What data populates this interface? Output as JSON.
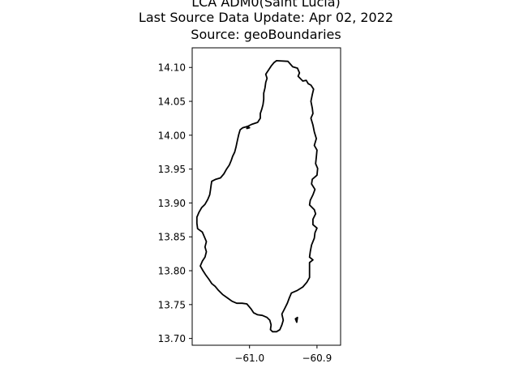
{
  "chart_data": {
    "type": "map",
    "title_lines": [
      "LCA ADM0(Saint Lucia)",
      "Last Source Data Update: Apr 02, 2022",
      "Source: geoBoundaries"
    ],
    "xlabel": "",
    "ylabel": "",
    "xlim": [
      -61.085,
      -60.865
    ],
    "ylim": [
      13.69,
      14.129
    ],
    "x_ticks": [
      {
        "value": -61.0,
        "label": "−61.0"
      },
      {
        "value": -60.9,
        "label": "−60.9"
      }
    ],
    "y_ticks": [
      {
        "value": 13.7,
        "label": "13.70"
      },
      {
        "value": 13.75,
        "label": "13.75"
      },
      {
        "value": 13.8,
        "label": "13.80"
      },
      {
        "value": 13.85,
        "label": "13.85"
      },
      {
        "value": 13.9,
        "label": "13.90"
      },
      {
        "value": 13.95,
        "label": "13.95"
      },
      {
        "value": 14.0,
        "label": "14.00"
      },
      {
        "value": 14.05,
        "label": "14.05"
      },
      {
        "value": 14.1,
        "label": "14.10"
      }
    ],
    "grid": false,
    "boundary_color": "#000000",
    "outline": [
      [
        -60.96,
        14.11
      ],
      [
        -60.943,
        14.109
      ],
      [
        -60.936,
        14.101
      ],
      [
        -60.929,
        14.099
      ],
      [
        -60.926,
        14.092
      ],
      [
        -60.928,
        14.087
      ],
      [
        -60.921,
        14.08
      ],
      [
        -60.916,
        14.081
      ],
      [
        -60.913,
        14.076
      ],
      [
        -60.909,
        14.074
      ],
      [
        -60.905,
        14.068
      ],
      [
        -60.907,
        14.06
      ],
      [
        -60.909,
        14.05
      ],
      [
        -60.907,
        14.04
      ],
      [
        -60.906,
        14.032
      ],
      [
        -60.909,
        14.025
      ],
      [
        -60.906,
        14.015
      ],
      [
        -60.904,
        14.005
      ],
      [
        -60.901,
        13.995
      ],
      [
        -60.904,
        13.985
      ],
      [
        -60.9,
        13.978
      ],
      [
        -60.901,
        13.968
      ],
      [
        -60.902,
        13.958
      ],
      [
        -60.899,
        13.951
      ],
      [
        -60.9,
        13.941
      ],
      [
        -60.907,
        13.935
      ],
      [
        -60.908,
        13.928
      ],
      [
        -60.903,
        13.92
      ],
      [
        -60.906,
        13.912
      ],
      [
        -60.91,
        13.904
      ],
      [
        -60.911,
        13.897
      ],
      [
        -60.904,
        13.89
      ],
      [
        -60.902,
        13.884
      ],
      [
        -60.906,
        13.876
      ],
      [
        -60.906,
        13.868
      ],
      [
        -60.9,
        13.863
      ],
      [
        -60.903,
        13.856
      ],
      [
        -60.904,
        13.848
      ],
      [
        -60.908,
        13.838
      ],
      [
        -60.91,
        13.828
      ],
      [
        -60.911,
        13.82
      ],
      [
        -60.906,
        13.816
      ],
      [
        -60.911,
        13.812
      ],
      [
        -60.911,
        13.805
      ],
      [
        -60.911,
        13.798
      ],
      [
        -60.911,
        13.79
      ],
      [
        -60.915,
        13.783
      ],
      [
        -60.921,
        13.776
      ],
      [
        -60.929,
        13.771
      ],
      [
        -60.938,
        13.767
      ],
      [
        -60.941,
        13.76
      ],
      [
        -60.944,
        13.752
      ],
      [
        -60.948,
        13.744
      ],
      [
        -60.952,
        13.736
      ],
      [
        -60.95,
        13.727
      ],
      [
        -60.952,
        13.72
      ],
      [
        -60.955,
        13.713
      ],
      [
        -60.96,
        13.71
      ],
      [
        -60.966,
        13.71
      ],
      [
        -60.969,
        13.713
      ],
      [
        -60.968,
        13.72
      ],
      [
        -60.97,
        13.727
      ],
      [
        -60.974,
        13.731
      ],
      [
        -60.981,
        13.734
      ],
      [
        -60.988,
        13.735
      ],
      [
        -60.994,
        13.738
      ],
      [
        -60.998,
        13.744
      ],
      [
        -61.004,
        13.751
      ],
      [
        -61.011,
        13.752
      ],
      [
        -61.019,
        13.752
      ],
      [
        -61.026,
        13.755
      ],
      [
        -61.033,
        13.76
      ],
      [
        -61.04,
        13.765
      ],
      [
        -61.046,
        13.771
      ],
      [
        -61.051,
        13.777
      ],
      [
        -61.056,
        13.781
      ],
      [
        -61.06,
        13.787
      ],
      [
        -61.065,
        13.794
      ],
      [
        -61.069,
        13.8
      ],
      [
        -61.073,
        13.807
      ],
      [
        -61.07,
        13.814
      ],
      [
        -61.066,
        13.82
      ],
      [
        -61.064,
        13.828
      ],
      [
        -61.066,
        13.835
      ],
      [
        -61.064,
        13.843
      ],
      [
        -61.067,
        13.85
      ],
      [
        -61.07,
        13.857
      ],
      [
        -61.077,
        13.862
      ],
      [
        -61.078,
        13.87
      ],
      [
        -61.078,
        13.879
      ],
      [
        -61.075,
        13.886
      ],
      [
        -61.071,
        13.893
      ],
      [
        -61.066,
        13.898
      ],
      [
        -61.062,
        13.905
      ],
      [
        -61.059,
        13.912
      ],
      [
        -61.058,
        13.919
      ],
      [
        -61.057,
        13.926
      ],
      [
        -61.056,
        13.932
      ],
      [
        -61.05,
        13.935
      ],
      [
        -61.043,
        13.937
      ],
      [
        -61.038,
        13.943
      ],
      [
        -61.034,
        13.95
      ],
      [
        -61.03,
        13.956
      ],
      [
        -61.027,
        13.963
      ],
      [
        -61.025,
        13.969
      ],
      [
        -61.022,
        13.975
      ],
      [
        -61.02,
        13.983
      ],
      [
        -61.018,
        13.992
      ],
      [
        -61.016,
        14.001
      ],
      [
        -61.014,
        14.008
      ],
      [
        -61.01,
        14.011
      ],
      [
        -61.003,
        14.013
      ],
      [
        -60.997,
        14.016
      ],
      [
        -60.988,
        14.019
      ],
      [
        -60.984,
        14.025
      ],
      [
        -60.984,
        14.032
      ],
      [
        -60.982,
        14.038
      ],
      [
        -60.98,
        14.045
      ],
      [
        -60.979,
        14.053
      ],
      [
        -60.979,
        14.062
      ],
      [
        -60.977,
        14.07
      ],
      [
        -60.976,
        14.078
      ],
      [
        -60.974,
        14.084
      ],
      [
        -60.976,
        14.09
      ],
      [
        -60.972,
        14.096
      ],
      [
        -60.968,
        14.102
      ],
      [
        -60.964,
        14.107
      ],
      [
        -60.96,
        14.11
      ]
    ],
    "islets": [
      [
        [
          -60.932,
          13.729
        ],
        [
          -60.929,
          13.731
        ],
        [
          -60.93,
          13.724
        ],
        [
          -60.932,
          13.729
        ]
      ],
      [
        [
          -61.003,
          14.013
        ],
        [
          -61.0,
          14.011
        ],
        [
          -61.004,
          14.01
        ],
        [
          -61.003,
          14.013
        ]
      ]
    ]
  }
}
